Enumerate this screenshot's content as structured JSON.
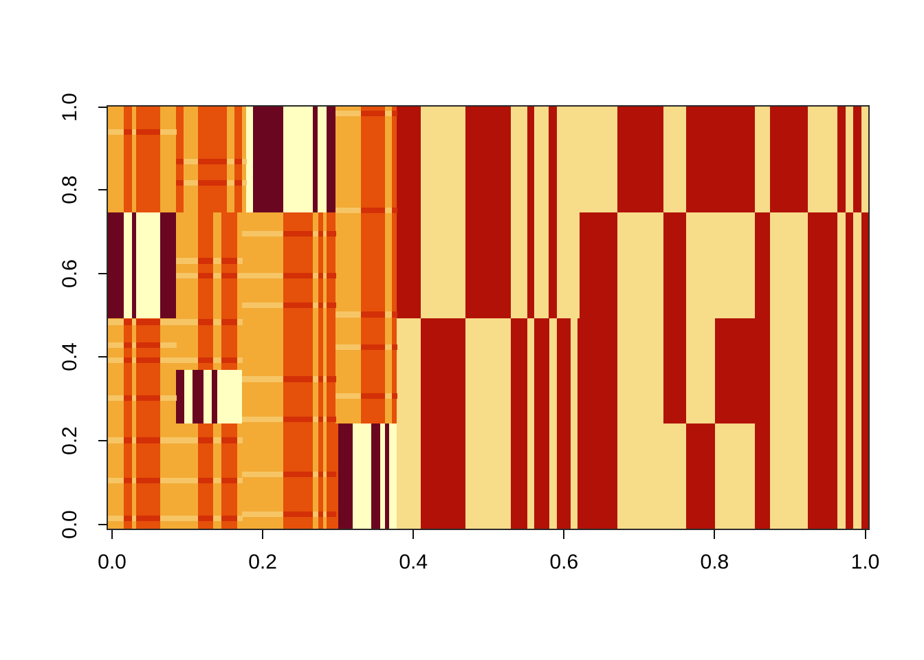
{
  "figure": {
    "background": "#ffffff",
    "box_color": "#2a2a2a",
    "tick_color": "#111111",
    "label_color": "#000000"
  },
  "axes": {
    "x_ticks": [
      {
        "label": "0.0",
        "f": 0.0054
      },
      {
        "label": "0.2",
        "f": 0.2035
      },
      {
        "label": "0.4",
        "f": 0.4016
      },
      {
        "label": "0.6",
        "f": 0.5997
      },
      {
        "label": "0.8",
        "f": 0.7978
      },
      {
        "label": "1.0",
        "f": 0.9959
      }
    ],
    "y_ticks": [
      {
        "label": "0.0",
        "f": 0.0098
      },
      {
        "label": "0.2",
        "f": 0.2081
      },
      {
        "label": "0.4",
        "f": 0.4065
      },
      {
        "label": "0.6",
        "f": 0.6049
      },
      {
        "label": "0.8",
        "f": 0.8033
      },
      {
        "label": "1.0",
        "f": 0.999
      }
    ]
  },
  "chart_data": {
    "type": "heatmap",
    "title": "",
    "xlabel": "",
    "ylabel": "",
    "x_range": [
      0,
      1
    ],
    "y_range": [
      0,
      1
    ],
    "grid": false,
    "legend": "none",
    "palette": {
      "O": "#F3AB36",
      "V": "#E5500A",
      "M": "#6B0621",
      "C": "#FFFFC2",
      "W": "#F7DC8A",
      "R": "#B21108",
      "LO": "#F6C566",
      "RS": "#D33008"
    },
    "stripe_map": {
      "O": "LO",
      "V": "RS"
    },
    "stripe_height": 0.012,
    "bands": [
      {
        "y0": 0.0,
        "y1": 0.25,
        "segments": [
          [
            "O",
            0,
            0.0208
          ],
          [
            "V",
            0.0208,
            0.0317
          ],
          [
            "O",
            0.0317,
            0.0371
          ],
          [
            "V",
            0.0371,
            0.0687
          ],
          [
            "O",
            0.0687,
            0.1184
          ],
          [
            "V",
            0.1184,
            0.1383
          ],
          [
            "O",
            0.1383,
            0.1492
          ],
          [
            "V",
            0.1492,
            0.17
          ],
          [
            "O",
            0.17,
            0.2306
          ],
          [
            "V",
            0.2306,
            0.2694
          ],
          [
            "O",
            0.2694,
            0.2767
          ],
          [
            "V",
            0.2767,
            0.283
          ],
          [
            "O",
            0.283,
            0.2875
          ],
          [
            "V",
            0.2875,
            0.3029
          ],
          [
            "M",
            0.3029,
            0.3219
          ],
          [
            "C",
            0.3219,
            0.3463
          ],
          [
            "M",
            0.3463,
            0.3581
          ],
          [
            "C",
            0.3581,
            0.3644
          ],
          [
            "M",
            0.3644,
            0.3698
          ],
          [
            "C",
            0.3698,
            0.3798
          ],
          [
            "W",
            0.3798,
            0.4114
          ],
          [
            "R",
            0.4114,
            0.4702
          ],
          [
            "W",
            0.4702,
            0.5298
          ],
          [
            "R",
            0.5298,
            0.5515
          ],
          [
            "W",
            0.5515,
            0.5606
          ],
          [
            "R",
            0.5606,
            0.5805
          ],
          [
            "W",
            0.5805,
            0.5904
          ],
          [
            "R",
            0.5904,
            0.6085
          ],
          [
            "W",
            0.6085,
            0.6175
          ],
          [
            "R",
            0.6175,
            0.67
          ],
          [
            "W",
            0.67,
            0.7604
          ],
          [
            "R",
            0.7604,
            0.7984
          ],
          [
            "W",
            0.7984,
            0.8508
          ],
          [
            "R",
            0.8508,
            0.8707
          ],
          [
            "W",
            0.8707,
            0.9204
          ],
          [
            "R",
            0.9204,
            0.9593
          ],
          [
            "W",
            0.9593,
            0.9702
          ],
          [
            "R",
            0.9702,
            0.9801
          ],
          [
            "W",
            0.9801,
            0.991
          ],
          [
            "R",
            0.991,
            1
          ]
        ]
      },
      {
        "y0": 0.25,
        "y1": 0.378,
        "segments": [
          [
            "O",
            0,
            0.0208
          ],
          [
            "V",
            0.0208,
            0.0317
          ],
          [
            "O",
            0.0317,
            0.0371
          ],
          [
            "V",
            0.0371,
            0.0687
          ],
          [
            "O",
            0.0687,
            0.0895
          ],
          [
            "M",
            0.0895,
            0.1004
          ],
          [
            "C",
            0.1004,
            0.1112
          ],
          [
            "M",
            0.1112,
            0.1257
          ],
          [
            "C",
            0.1257,
            0.1365
          ],
          [
            "M",
            0.1365,
            0.1438
          ],
          [
            "C",
            0.1438,
            0.1763
          ],
          [
            "O",
            0.1763,
            0.2306
          ],
          [
            "V",
            0.2306,
            0.2694
          ],
          [
            "O",
            0.2694,
            0.2767
          ],
          [
            "V",
            0.2767,
            0.283
          ],
          [
            "O",
            0.283,
            0.2875
          ],
          [
            "V",
            0.2875,
            0.2993
          ],
          [
            "O",
            0.2993,
            0.3327
          ],
          [
            "V",
            0.3327,
            0.3644
          ],
          [
            "O",
            0.3644,
            0.3734
          ],
          [
            "V",
            0.3734,
            0.3798
          ],
          [
            "W",
            0.3798,
            0.4114
          ],
          [
            "R",
            0.4114,
            0.4702
          ],
          [
            "W",
            0.4702,
            0.5298
          ],
          [
            "R",
            0.5298,
            0.5515
          ],
          [
            "W",
            0.5515,
            0.5606
          ],
          [
            "R",
            0.5606,
            0.5805
          ],
          [
            "W",
            0.5805,
            0.5904
          ],
          [
            "R",
            0.5904,
            0.6085
          ],
          [
            "W",
            0.6085,
            0.6175
          ],
          [
            "R",
            0.6175,
            0.67
          ],
          [
            "W",
            0.67,
            0.7306
          ],
          [
            "R",
            0.7306,
            0.7604
          ],
          [
            "W",
            0.7604,
            0.7984
          ],
          [
            "R",
            0.7984,
            0.8707
          ],
          [
            "W",
            0.8707,
            0.9204
          ],
          [
            "R",
            0.9204,
            0.9593
          ],
          [
            "W",
            0.9593,
            0.9702
          ],
          [
            "R",
            0.9702,
            0.9801
          ],
          [
            "W",
            0.9801,
            0.991
          ],
          [
            "R",
            0.991,
            1
          ]
        ]
      },
      {
        "y0": 0.378,
        "y1": 0.5,
        "segments": [
          [
            "O",
            0,
            0.0208
          ],
          [
            "V",
            0.0208,
            0.0317
          ],
          [
            "O",
            0.0317,
            0.0371
          ],
          [
            "V",
            0.0371,
            0.0687
          ],
          [
            "O",
            0.0687,
            0.1184
          ],
          [
            "V",
            0.1184,
            0.1383
          ],
          [
            "O",
            0.1383,
            0.1492
          ],
          [
            "V",
            0.1492,
            0.17
          ],
          [
            "O",
            0.17,
            0.2306
          ],
          [
            "V",
            0.2306,
            0.2694
          ],
          [
            "O",
            0.2694,
            0.2767
          ],
          [
            "V",
            0.2767,
            0.283
          ],
          [
            "O",
            0.283,
            0.2875
          ],
          [
            "V",
            0.2875,
            0.2993
          ],
          [
            "O",
            0.2993,
            0.3327
          ],
          [
            "V",
            0.3327,
            0.3644
          ],
          [
            "O",
            0.3644,
            0.3734
          ],
          [
            "V",
            0.3734,
            0.3798
          ],
          [
            "W",
            0.3798,
            0.4114
          ],
          [
            "R",
            0.4114,
            0.4702
          ],
          [
            "W",
            0.4702,
            0.5298
          ],
          [
            "R",
            0.5298,
            0.5515
          ],
          [
            "W",
            0.5515,
            0.5606
          ],
          [
            "R",
            0.5606,
            0.5805
          ],
          [
            "W",
            0.5805,
            0.5904
          ],
          [
            "R",
            0.5904,
            0.6085
          ],
          [
            "W",
            0.6085,
            0.6175
          ],
          [
            "R",
            0.6175,
            0.67
          ],
          [
            "W",
            0.67,
            0.7306
          ],
          [
            "R",
            0.7306,
            0.7604
          ],
          [
            "W",
            0.7604,
            0.7984
          ],
          [
            "R",
            0.7984,
            0.8707
          ],
          [
            "W",
            0.8707,
            0.9204
          ],
          [
            "R",
            0.9204,
            0.9593
          ],
          [
            "W",
            0.9593,
            0.9702
          ],
          [
            "R",
            0.9702,
            0.9801
          ],
          [
            "W",
            0.9801,
            0.991
          ],
          [
            "R",
            0.991,
            1
          ]
        ]
      },
      {
        "y0": 0.5,
        "y1": 0.75,
        "segments": [
          [
            "M",
            0,
            0.0208
          ],
          [
            "C",
            0.0208,
            0.0317
          ],
          [
            "M",
            0.0317,
            0.0371
          ],
          [
            "C",
            0.0371,
            0.0687
          ],
          [
            "M",
            0.0687,
            0.0895
          ],
          [
            "O",
            0.0895,
            0.1184
          ],
          [
            "V",
            0.1184,
            0.1383
          ],
          [
            "O",
            0.1383,
            0.1492
          ],
          [
            "V",
            0.1492,
            0.17
          ],
          [
            "O",
            0.17,
            0.2306
          ],
          [
            "V",
            0.2306,
            0.2694
          ],
          [
            "O",
            0.2694,
            0.2767
          ],
          [
            "V",
            0.2767,
            0.283
          ],
          [
            "O",
            0.283,
            0.2875
          ],
          [
            "V",
            0.2875,
            0.2993
          ],
          [
            "O",
            0.2993,
            0.3327
          ],
          [
            "V",
            0.3327,
            0.3644
          ],
          [
            "O",
            0.3644,
            0.3734
          ],
          [
            "V",
            0.3734,
            0.3798
          ],
          [
            "R",
            0.3798,
            0.4114
          ],
          [
            "W",
            0.4114,
            0.4702
          ],
          [
            "R",
            0.4702,
            0.5298
          ],
          [
            "W",
            0.5298,
            0.5515
          ],
          [
            "R",
            0.5515,
            0.5606
          ],
          [
            "W",
            0.5606,
            0.5796
          ],
          [
            "R",
            0.5796,
            0.5904
          ],
          [
            "W",
            0.5904,
            0.6202
          ],
          [
            "R",
            0.6202,
            0.67
          ],
          [
            "W",
            0.67,
            0.7306
          ],
          [
            "R",
            0.7306,
            0.7604
          ],
          [
            "W",
            0.7604,
            0.8508
          ],
          [
            "R",
            0.8508,
            0.8707
          ],
          [
            "W",
            0.8707,
            0.9204
          ],
          [
            "R",
            0.9204,
            0.9593
          ],
          [
            "W",
            0.9593,
            0.9702
          ],
          [
            "R",
            0.9702,
            0.9801
          ],
          [
            "W",
            0.9801,
            0.991
          ],
          [
            "R",
            0.991,
            1
          ]
        ]
      },
      {
        "y0": 0.75,
        "y1": 1.0,
        "segments": [
          [
            "O",
            0,
            0.0208
          ],
          [
            "V",
            0.0208,
            0.0317
          ],
          [
            "O",
            0.0317,
            0.0371
          ],
          [
            "V",
            0.0371,
            0.0687
          ],
          [
            "O",
            0.0687,
            0.0895
          ],
          [
            "V",
            0.0895,
            0.0995
          ],
          [
            "O",
            0.0995,
            0.1184
          ],
          [
            "V",
            0.1184,
            0.1564
          ],
          [
            "O",
            0.1564,
            0.1664
          ],
          [
            "V",
            0.1664,
            0.1763
          ],
          [
            "O",
            0.1763,
            0.1817
          ],
          [
            "C",
            0.1817,
            0.1908
          ],
          [
            "M",
            0.1908,
            0.2306
          ],
          [
            "C",
            0.2306,
            0.2694
          ],
          [
            "M",
            0.2694,
            0.2758
          ],
          [
            "C",
            0.2758,
            0.2875
          ],
          [
            "M",
            0.2875,
            0.2993
          ],
          [
            "O",
            0.2993,
            0.3327
          ],
          [
            "V",
            0.3327,
            0.3644
          ],
          [
            "O",
            0.3644,
            0.3734
          ],
          [
            "V",
            0.3734,
            0.3798
          ],
          [
            "R",
            0.3798,
            0.4114
          ],
          [
            "W",
            0.4114,
            0.4702
          ],
          [
            "R",
            0.4702,
            0.5298
          ],
          [
            "W",
            0.5298,
            0.5515
          ],
          [
            "R",
            0.5515,
            0.5606
          ],
          [
            "W",
            0.5606,
            0.5796
          ],
          [
            "R",
            0.5796,
            0.5904
          ],
          [
            "W",
            0.5904,
            0.67
          ],
          [
            "R",
            0.67,
            0.7306
          ],
          [
            "W",
            0.7306,
            0.7604
          ],
          [
            "R",
            0.7604,
            0.8508
          ],
          [
            "W",
            0.8508,
            0.8707
          ],
          [
            "R",
            0.8707,
            0.9204
          ],
          [
            "W",
            0.9204,
            0.9593
          ],
          [
            "R",
            0.9593,
            0.9702
          ],
          [
            "W",
            0.9702,
            0.9801
          ],
          [
            "R",
            0.9801,
            0.991
          ],
          [
            "W",
            0.991,
            1
          ]
        ]
      }
    ],
    "stripes": [
      {
        "x0": 0.0,
        "x1": 0.0895,
        "ys": [
          0.94,
          0.49,
          0.435,
          0.4,
          0.31,
          0.21,
          0.115,
          0.025
        ]
      },
      {
        "x0": 0.0895,
        "x1": 0.1817,
        "ys": [
          0.87,
          0.82
        ]
      },
      {
        "x0": 0.0895,
        "x1": 0.1763,
        "ys": [
          0.635,
          0.6,
          0.49,
          0.4,
          0.21,
          0.115,
          0.025
        ]
      },
      {
        "x0": 0.1763,
        "x1": 0.2993,
        "ys": [
          0.7,
          0.6,
          0.53,
          0.355,
          0.26,
          0.13,
          0.035
        ]
      },
      {
        "x0": 0.2993,
        "x1": 0.3798,
        "ys": [
          0.985,
          0.755,
          0.508,
          0.43,
          0.315
        ]
      }
    ]
  }
}
